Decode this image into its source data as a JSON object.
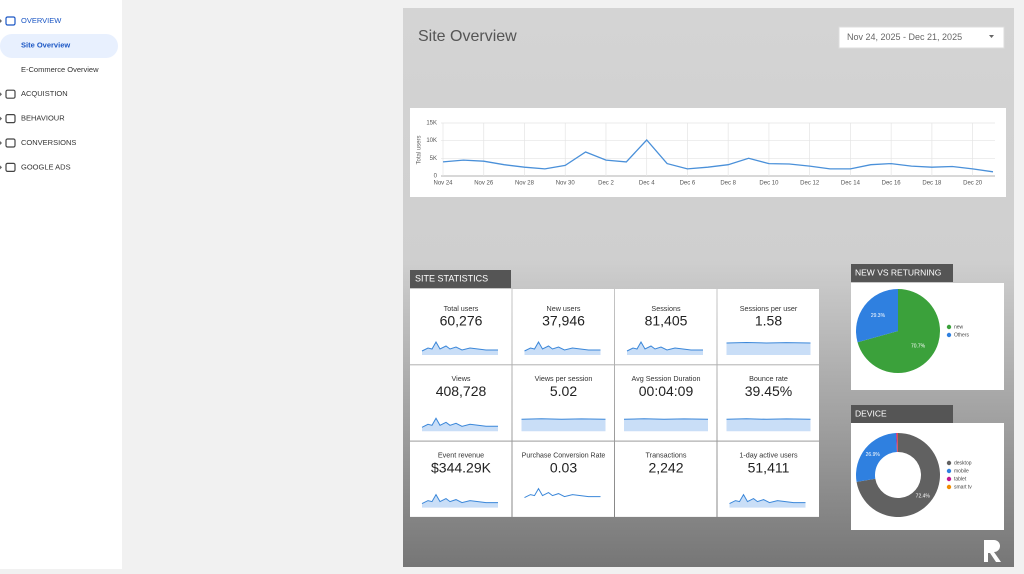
{
  "nav": [
    {
      "label": "OVERVIEW",
      "level": 0,
      "active": true
    },
    {
      "label": "Site Overview",
      "level": 1,
      "selected": true
    },
    {
      "label": "E-Commerce Overview",
      "level": 1
    },
    {
      "label": "ACQUISTION",
      "level": 0
    },
    {
      "label": "BEHAVIOUR",
      "level": 0
    },
    {
      "label": "CONVERSIONS",
      "level": 0
    },
    {
      "label": "GOOGLE ADS",
      "level": 0
    }
  ],
  "header": {
    "title": "Site Overview",
    "date_range": "Nov 24, 2025 - Dec 21, 2025"
  },
  "line_chart": {
    "type": "line",
    "y_label": "Total users",
    "color": "#4a90d9",
    "categories": [
      "Nov 24",
      null,
      "Nov 26",
      null,
      "Nov 28",
      null,
      "Nov 30",
      null,
      "Dec 2",
      null,
      "Dec 4",
      null,
      "Dec 6",
      null,
      "Dec 8",
      null,
      "Dec 10",
      null,
      "Dec 12",
      null,
      "Dec 14",
      null,
      "Dec 16",
      null,
      "Dec 18",
      null,
      "Dec 20",
      null
    ],
    "values": [
      4000,
      4500,
      4200,
      3200,
      2500,
      2000,
      3000,
      6800,
      4500,
      4000,
      10200,
      3500,
      2000,
      2500,
      3200,
      5000,
      3500,
      3400,
      2800,
      2000,
      2000,
      3200,
      3500,
      2800,
      2500,
      2700,
      2000,
      1200
    ],
    "ylim": [
      0,
      15000
    ],
    "yticks": [
      0,
      {
        "value": 5000,
        "label": "5K"
      },
      {
        "value": 10000,
        "label": "10K"
      },
      {
        "value": 15000,
        "label": "15K"
      }
    ],
    "grid": true
  },
  "stats": {
    "title": "SITE STATISTICS",
    "cards": [
      {
        "label": "Total users",
        "value": "60,276"
      },
      {
        "label": "New users",
        "value": "37,946"
      },
      {
        "label": "Sessions",
        "value": "81,405"
      },
      {
        "label": "Sessions per user",
        "value": "1.58"
      },
      {
        "label": "Views",
        "value": "408,728"
      },
      {
        "label": "Views per session",
        "value": "5.02"
      },
      {
        "label": "Avg Session Duration",
        "value": "00:04:09"
      },
      {
        "label": "Bounce rate",
        "value": "39.45%"
      },
      {
        "label": "Event revenue",
        "value": "$344.29K"
      },
      {
        "label": "Purchase Conversion Rate",
        "value": "0.03"
      },
      {
        "label": "Transactions",
        "value": "2,242"
      },
      {
        "label": "1-day active users",
        "value": "51,411"
      }
    ]
  },
  "new_vs_returning": {
    "type": "pie",
    "title": "NEW VS RETURNING",
    "categories": [
      "new",
      "Others"
    ],
    "values": [
      70.7,
      29.3
    ],
    "value_labels": [
      "70.7%",
      "29.3%"
    ],
    "colors": [
      "#3ba13b",
      "#2f80e0"
    ]
  },
  "device": {
    "type": "donut",
    "title": "DEVICE",
    "categories": [
      "desktop",
      "mobile",
      "tablet",
      "smart tv"
    ],
    "values": [
      72.4,
      26.9,
      0.5,
      0.2
    ],
    "value_labels": [
      "72.4%",
      "26.9%",
      null,
      null
    ],
    "colors": [
      "#616161",
      "#2f80e0",
      "#c2188f",
      "#f08c00"
    ]
  }
}
